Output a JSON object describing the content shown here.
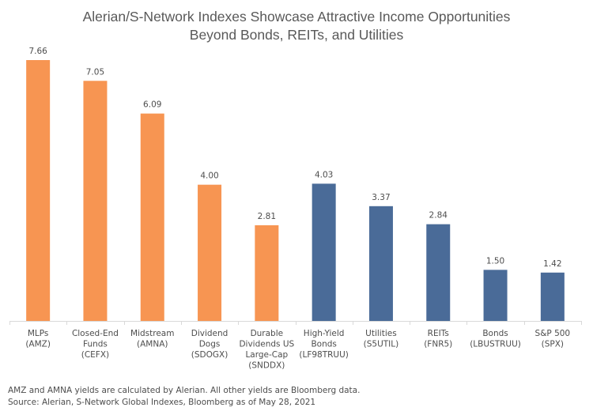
{
  "chart_data": {
    "type": "bar",
    "title": "Alerian/S-Network Indexes Showcase Attractive Income Opportunities",
    "subtitle": "Beyond Bonds, REITs, and Utilities",
    "xlabel": "",
    "ylabel": "",
    "ylim": [
      0,
      8
    ],
    "grid": false,
    "categories": [
      [
        "MLPs",
        "(AMZ)"
      ],
      [
        "Closed-End",
        "Funds",
        "(CEFX)"
      ],
      [
        "Midstream",
        "(AMNA)"
      ],
      [
        "Dividend",
        "Dogs",
        "(SDOGX)"
      ],
      [
        "Durable",
        "Dividends US",
        "Large-Cap",
        "(SNDDX)"
      ],
      [
        "High-Yield",
        "Bonds",
        "(LF98TRUU)"
      ],
      [
        "Utilities",
        "(S5UTIL)"
      ],
      [
        "REITs",
        "(FNR5)"
      ],
      [
        "Bonds",
        "(LBUSTRUU)"
      ],
      [
        "S&P 500",
        "(SPX)"
      ]
    ],
    "values": [
      7.66,
      7.05,
      6.09,
      4.0,
      2.81,
      4.03,
      3.37,
      2.84,
      1.5,
      1.42
    ],
    "labels": [
      "7.66",
      "7.05",
      "6.09",
      "4.00",
      "2.81",
      "4.03",
      "3.37",
      "2.84",
      "1.50",
      "1.42"
    ],
    "groups": [
      "alerian",
      "alerian",
      "alerian",
      "alerian",
      "alerian",
      "other",
      "other",
      "other",
      "other",
      "other"
    ],
    "colors": {
      "alerian": "#f79552",
      "other": "#4a6b98",
      "axis": "#d9d9d9",
      "label": "#4d4d4d"
    }
  },
  "footer": {
    "note": "AMZ and AMNA yields are calculated by Alerian. All other yields are Bloomberg data.",
    "source": "Source: Alerian, S-Network Global Indexes, Bloomberg as of May 28, 2021"
  }
}
